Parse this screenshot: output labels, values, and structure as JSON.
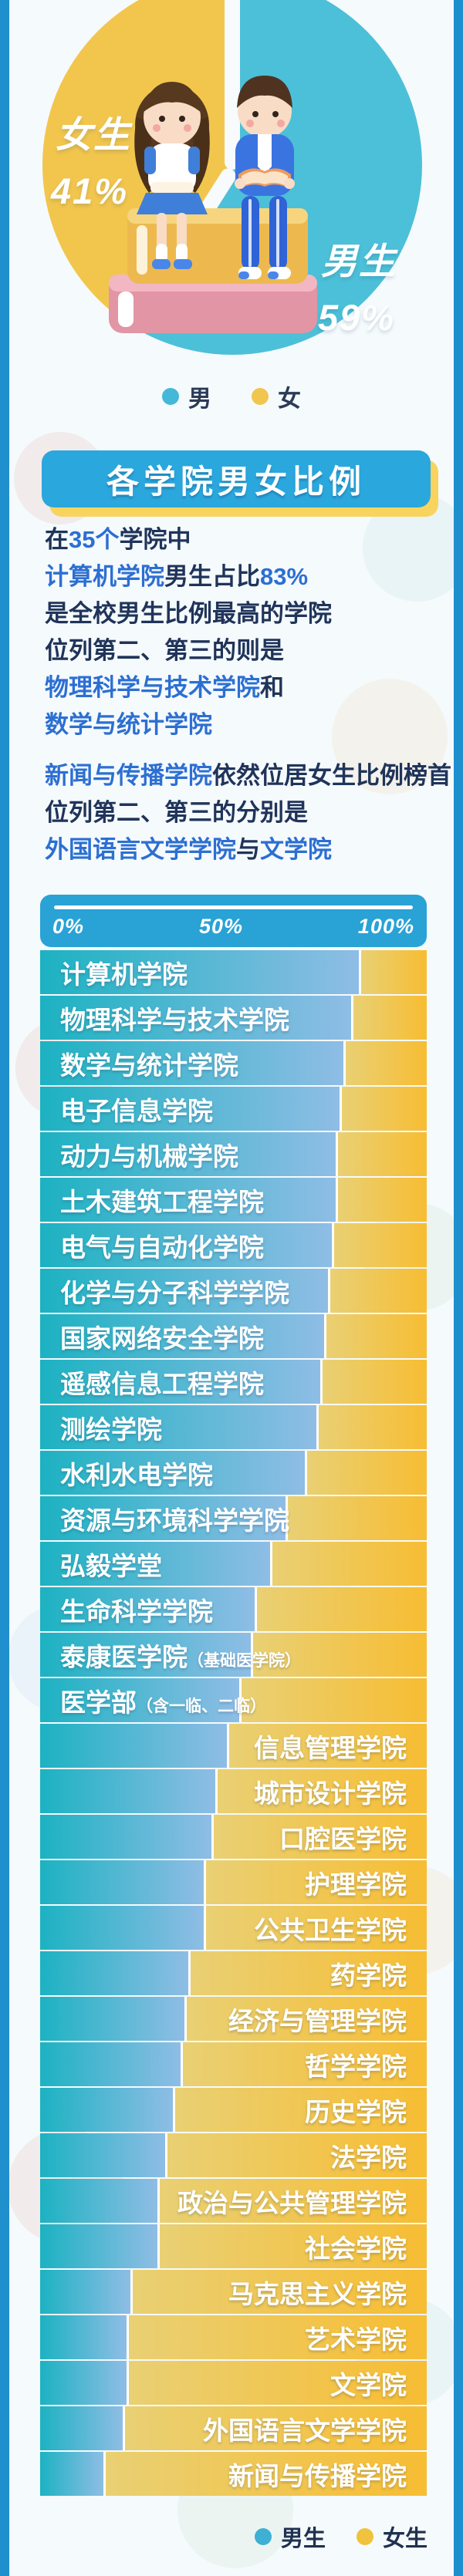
{
  "colors": {
    "edge_strip": "#1f90cd",
    "pie_male": "#4cc0d8",
    "pie_female": "#f2c64d",
    "banner_bg": "#2aa7dd",
    "banner_shadow": "#f8d45e",
    "axis_bg": "#29a2d5",
    "bar_male_gradient": [
      "#1cb2c2",
      "#8fbde5"
    ],
    "bar_female_gradient": [
      "#e9d074",
      "#f7bd33"
    ],
    "text_dark": "#20345a",
    "text_blue": "#2c6fd2"
  },
  "section": {
    "title": "各学院男女比例"
  },
  "intro": {
    "lines": [
      {
        "gap": false,
        "segments": [
          {
            "t": "在",
            "c": "dark"
          },
          {
            "t": "35个",
            "c": "blue"
          },
          {
            "t": "学院中",
            "c": "dark"
          }
        ]
      },
      {
        "gap": false,
        "segments": [
          {
            "t": "计算机学院",
            "c": "blue"
          },
          {
            "t": "男生占比",
            "c": "dark"
          },
          {
            "t": "83%",
            "c": "blue"
          }
        ]
      },
      {
        "gap": false,
        "segments": [
          {
            "t": "是全校男生比例最高的学院",
            "c": "dark"
          }
        ]
      },
      {
        "gap": false,
        "segments": [
          {
            "t": "位列第二、第三的则是",
            "c": "dark"
          }
        ]
      },
      {
        "gap": false,
        "segments": [
          {
            "t": "物理科学与技术学院",
            "c": "blue"
          },
          {
            "t": "和",
            "c": "dark"
          }
        ]
      },
      {
        "gap": false,
        "segments": [
          {
            "t": "数学与统计学院",
            "c": "blue"
          }
        ]
      },
      {
        "gap": true,
        "segments": [
          {
            "t": "新闻与传播学院",
            "c": "blue"
          },
          {
            "t": "依然位居女生比例榜首",
            "c": "dark"
          }
        ]
      },
      {
        "gap": false,
        "segments": [
          {
            "t": "位列第二、第三的分别是",
            "c": "dark"
          }
        ]
      },
      {
        "gap": false,
        "segments": [
          {
            "t": "外国语言文学学院",
            "c": "blue"
          },
          {
            "t": "与",
            "c": "dark"
          },
          {
            "t": "文学院",
            "c": "blue"
          }
        ]
      }
    ]
  },
  "chart_data": [
    {
      "type": "pie",
      "series": [
        {
          "label": "男",
          "value": 59,
          "color": "#4cc0d8"
        },
        {
          "label": "女",
          "value": 41,
          "color": "#f2c64d"
        }
      ],
      "labels": {
        "female": "女生",
        "female_pct": "41%",
        "male": "男生",
        "male_pct": "59%"
      },
      "legend": [
        {
          "label": "男",
          "color": "#45b8d8"
        },
        {
          "label": "女",
          "color": "#f1c64f"
        }
      ],
      "legend_position": "bottom-center"
    },
    {
      "type": "bar",
      "stacked": true,
      "orientation": "horizontal",
      "unit": "%",
      "xlim": [
        0,
        100
      ],
      "axis_ticks": [
        "0%",
        "50%",
        "100%"
      ],
      "series_names": [
        "男生",
        "女生"
      ],
      "legend": [
        {
          "label": "男生",
          "color": "#3db0d4"
        },
        {
          "label": "女生",
          "color": "#f0c23d"
        }
      ],
      "legend_position": "bottom-right",
      "rows": [
        {
          "category": "计算机学院",
          "sub": "",
          "male": 83,
          "female": 17,
          "label_side": "left"
        },
        {
          "category": "物理科学与技术学院",
          "sub": "",
          "male": 81,
          "female": 19,
          "label_side": "left"
        },
        {
          "category": "数学与统计学院",
          "sub": "",
          "male": 79,
          "female": 21,
          "label_side": "left"
        },
        {
          "category": "电子信息学院",
          "sub": "",
          "male": 78,
          "female": 22,
          "label_side": "left"
        },
        {
          "category": "动力与机械学院",
          "sub": "",
          "male": 77,
          "female": 23,
          "label_side": "left"
        },
        {
          "category": "土木建筑工程学院",
          "sub": "",
          "male": 77,
          "female": 23,
          "label_side": "left"
        },
        {
          "category": "电气与自动化学院",
          "sub": "",
          "male": 76,
          "female": 24,
          "label_side": "left"
        },
        {
          "category": "化学与分子科学学院",
          "sub": "",
          "male": 75,
          "female": 25,
          "label_side": "left"
        },
        {
          "category": "国家网络安全学院",
          "sub": "",
          "male": 74,
          "female": 26,
          "label_side": "left"
        },
        {
          "category": "遥感信息工程学院",
          "sub": "",
          "male": 73,
          "female": 27,
          "label_side": "left"
        },
        {
          "category": "测绘学院",
          "sub": "",
          "male": 72,
          "female": 28,
          "label_side": "left"
        },
        {
          "category": "水利水电学院",
          "sub": "",
          "male": 69,
          "female": 31,
          "label_side": "left"
        },
        {
          "category": "资源与环境科学学院",
          "sub": "",
          "male": 64,
          "female": 36,
          "label_side": "left"
        },
        {
          "category": "弘毅学堂",
          "sub": "",
          "male": 60,
          "female": 40,
          "label_side": "left"
        },
        {
          "category": "生命科学学院",
          "sub": "",
          "male": 56,
          "female": 44,
          "label_side": "left"
        },
        {
          "category": "泰康医学院",
          "sub": "（基础医学院）",
          "male": 55,
          "female": 45,
          "label_side": "left"
        },
        {
          "category": "医学部",
          "sub": "（含一临、二临）",
          "male": 52,
          "female": 48,
          "label_side": "left"
        },
        {
          "category": "信息管理学院",
          "sub": "",
          "male": 49,
          "female": 51,
          "label_side": "right"
        },
        {
          "category": "城市设计学院",
          "sub": "",
          "male": 46,
          "female": 54,
          "label_side": "right"
        },
        {
          "category": "口腔医学院",
          "sub": "",
          "male": 45,
          "female": 55,
          "label_side": "right"
        },
        {
          "category": "护理学院",
          "sub": "",
          "male": 43,
          "female": 57,
          "label_side": "right"
        },
        {
          "category": "公共卫生学院",
          "sub": "",
          "male": 43,
          "female": 57,
          "label_side": "right"
        },
        {
          "category": "药学院",
          "sub": "",
          "male": 39,
          "female": 61,
          "label_side": "right"
        },
        {
          "category": "经济与管理学院",
          "sub": "",
          "male": 38,
          "female": 62,
          "label_side": "right"
        },
        {
          "category": "哲学学院",
          "sub": "",
          "male": 37,
          "female": 63,
          "label_side": "right"
        },
        {
          "category": "历史学院",
          "sub": "",
          "male": 35,
          "female": 65,
          "label_side": "right"
        },
        {
          "category": "法学院",
          "sub": "",
          "male": 33,
          "female": 67,
          "label_side": "right"
        },
        {
          "category": "政治与公共管理学院",
          "sub": "",
          "male": 31,
          "female": 69,
          "label_side": "right"
        },
        {
          "category": "社会学院",
          "sub": "",
          "male": 31,
          "female": 69,
          "label_side": "right"
        },
        {
          "category": "马克思主义学院",
          "sub": "",
          "male": 24,
          "female": 76,
          "label_side": "right"
        },
        {
          "category": "艺术学院",
          "sub": "",
          "male": 23,
          "female": 77,
          "label_side": "right"
        },
        {
          "category": "文学院",
          "sub": "",
          "male": 23,
          "female": 77,
          "label_side": "right"
        },
        {
          "category": "外国语言文学学院",
          "sub": "",
          "male": 22,
          "female": 78,
          "label_side": "right"
        },
        {
          "category": "新闻与传播学院",
          "sub": "",
          "male": 17,
          "female": 83,
          "label_side": "right"
        }
      ]
    }
  ]
}
